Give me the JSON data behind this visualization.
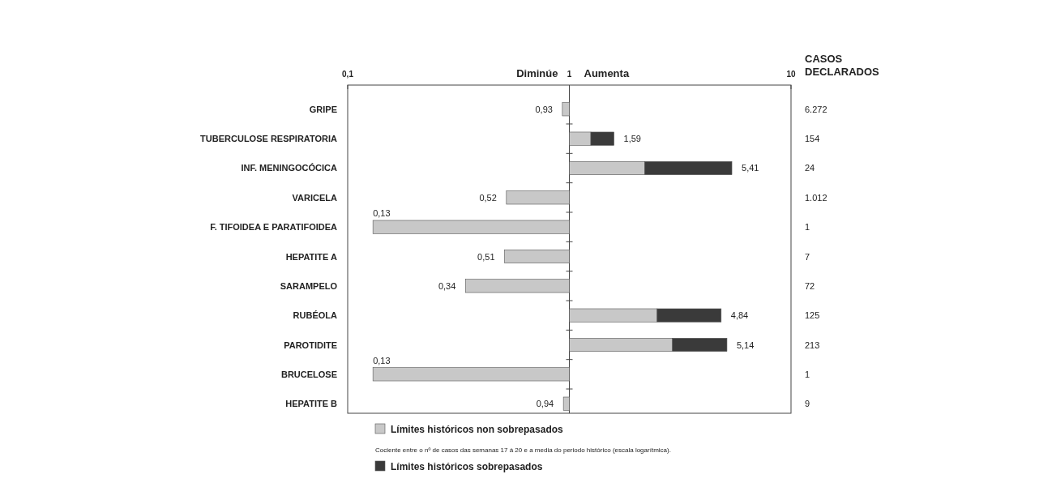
{
  "chart_data": {
    "type": "bar",
    "orientation": "horizontal",
    "log": "x",
    "categories": [
      "GRIPE",
      "TUBERCULOSE RESPIRATORIA",
      "INF. MENINGOCÓCICA",
      "VARICELA",
      "F. TIFOIDEA E PARATIFOIDEA",
      "HEPATITE A",
      "SARAMPELO",
      "RUBÉOLA",
      "PAROTIDITE",
      "BRUCELOSE",
      "HEPATITE B"
    ],
    "series": [
      {
        "name": "Límites históricos non sobrepasados",
        "color": "#c8c8c8",
        "base": [
          1,
          1,
          1,
          1,
          1,
          1,
          1,
          1,
          1,
          1,
          1
        ],
        "values": [
          -0.07,
          0.25,
          1.19,
          -0.48,
          -0.87,
          -0.49,
          -0.66,
          1.49,
          1.92,
          -0.87,
          -0.06
        ]
      },
      {
        "name": "Límites históricos sobrepasados",
        "color": "#3a3a3a",
        "base": [
          null,
          1.25,
          2.19,
          null,
          null,
          null,
          null,
          2.49,
          2.92,
          null,
          null
        ],
        "values": [
          null,
          0.34,
          3.22,
          null,
          null,
          null,
          null,
          2.35,
          2.22,
          null,
          null
        ]
      }
    ],
    "xlim": [
      0.1,
      10
    ],
    "xticks": [
      {
        "value": 0.1,
        "label": "0,1"
      },
      1,
      10
    ],
    "y2label": "CASOS DECLARADOS",
    "legend": "bottom",
    "annotations": [
      "Diminúe",
      "Aumenta",
      "Cociente entre o nº de casos das semanas 17 á 20 e a media do periodo histórico (escala logarítmica).",
      {
        "text": "0,93",
        "x": 0.93,
        "y": "GRIPE"
      },
      {
        "text": "1,59",
        "x": 1.59,
        "y": "TUBERCULOSE RESPIRATORIA"
      },
      {
        "text": "5,41",
        "x": 5.41,
        "y": "INF. MENINGOCÓCICA"
      },
      {
        "text": "0,52",
        "x": 0.52,
        "y": "VARICELA"
      },
      {
        "text": "0,13",
        "x": 0.13,
        "y": "F. TIFOIDEA E PARATIFOIDEA"
      },
      {
        "text": "0,51",
        "x": 0.51,
        "y": "HEPATITE A"
      },
      {
        "text": "0,34",
        "x": 0.34,
        "y": "SARAMPELO"
      },
      {
        "text": "4,84",
        "x": 4.84,
        "y": "RUBÉOLA"
      },
      {
        "text": "5,14",
        "x": 5.14,
        "y": "PAROTIDITE"
      },
      {
        "text": "0,13",
        "x": 0.13,
        "y": "BRUCELOSE"
      },
      {
        "text": "0,94",
        "x": 0.94,
        "y": "HEPATITE B"
      },
      "6.272",
      "154",
      "24",
      "1.012",
      "1",
      "7",
      "72",
      "125",
      "213",
      "1",
      "9"
    ]
  }
}
